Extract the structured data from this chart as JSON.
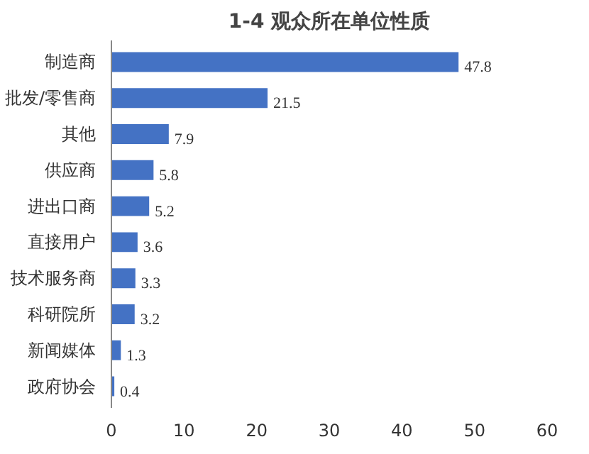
{
  "chart_data": {
    "type": "bar",
    "orientation": "horizontal",
    "title": "1-4 观众所在单位性质",
    "categories": [
      "制造商",
      "批发/零售商",
      "其他",
      "供应商",
      "进出口商",
      "直接用户",
      "技术服务商",
      "科研院所",
      "新闻媒体",
      "政府协会"
    ],
    "values": [
      47.8,
      21.5,
      7.9,
      5.8,
      5.2,
      3.6,
      3.3,
      3.2,
      1.3,
      0.4
    ],
    "color": "#4472c4",
    "xlim": [
      0,
      60
    ],
    "xticks": [
      0,
      10,
      20,
      30,
      40,
      50,
      60
    ],
    "grid": false,
    "data_labels": true
  }
}
